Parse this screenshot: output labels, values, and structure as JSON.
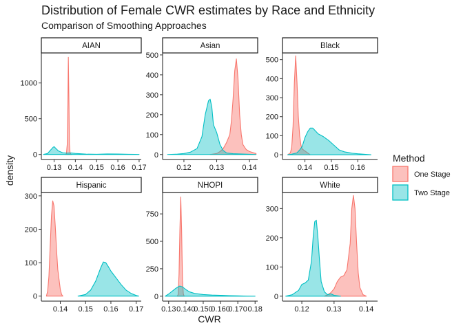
{
  "chart_data": {
    "type": "area",
    "title": "Distribution of Female CWR estimates by Race and Ethnicity",
    "subtitle": "Comparison of Smoothing Approaches",
    "xlabel": "CWR",
    "ylabel": "density",
    "legend": {
      "title": "Method",
      "placement": "right",
      "entries": [
        {
          "name": "One Stage",
          "fill": "#F8766D",
          "fill_opacity": 0.45,
          "stroke": "#F8766D"
        },
        {
          "name": "Two Stage",
          "fill": "#00BFC4",
          "fill_opacity": 0.4,
          "stroke": "#00BFC4"
        }
      ]
    },
    "panels": [
      {
        "name": "AIAN",
        "xlim": [
          0.124,
          0.171
        ],
        "ylim": [
          -70,
          1420
        ],
        "xticks": [
          0.13,
          0.14,
          0.15,
          0.16,
          0.17
        ],
        "xtick_labels": [
          "0.13",
          "0.14",
          "0.15",
          "0.16",
          "0.17"
        ],
        "yticks": [
          0,
          500,
          1000
        ],
        "ytick_labels": [
          "0",
          "500",
          "1000"
        ],
        "series": [
          {
            "name": "One Stage",
            "x": [
              0.1355,
              0.1358,
              0.1362,
              0.1365,
              0.1367,
              0.137,
              0.1372,
              0.1375,
              0.1378,
              0.1382
            ],
            "y": [
              0,
              10,
              150,
              700,
              1360,
              700,
              150,
              30,
              5,
              0
            ]
          },
          {
            "name": "Two Stage",
            "x": [
              0.125,
              0.127,
              0.128,
              0.1295,
              0.13,
              0.1305,
              0.132,
              0.134,
              0.136,
              0.138,
              0.14,
              0.145,
              0.15,
              0.155,
              0.16,
              0.165,
              0.168,
              0.17
            ],
            "y": [
              0,
              15,
              50,
              100,
              110,
              95,
              50,
              25,
              20,
              22,
              15,
              5,
              3,
              8,
              6,
              3,
              1,
              0
            ]
          }
        ]
      },
      {
        "name": "Asian",
        "xlim": [
          0.1135,
          0.1425
        ],
        "ylim": [
          -25,
          510
        ],
        "xticks": [
          0.12,
          0.13,
          0.14
        ],
        "xtick_labels": [
          "0.12",
          "0.13",
          "0.14"
        ],
        "yticks": [
          0,
          100,
          200,
          300,
          400,
          500
        ],
        "ytick_labels": [
          "0",
          "100",
          "200",
          "300",
          "400",
          "500"
        ],
        "series": [
          {
            "name": "One Stage",
            "x": [
              0.128,
              0.13,
              0.131,
              0.132,
              0.133,
              0.134,
              0.1345,
              0.135,
              0.1355,
              0.136,
              0.1365,
              0.137,
              0.1375,
              0.138,
              0.139,
              0.14,
              0.141,
              0.142
            ],
            "y": [
              0,
              5,
              15,
              30,
              60,
              100,
              170,
              280,
              420,
              480,
              380,
              200,
              100,
              50,
              25,
              15,
              10,
              5
            ]
          },
          {
            "name": "Two Stage",
            "x": [
              0.115,
              0.118,
              0.12,
              0.122,
              0.124,
              0.1255,
              0.1265,
              0.1275,
              0.128,
              0.1285,
              0.129,
              0.13,
              0.1305,
              0.131,
              0.132,
              0.133,
              0.135,
              0.14,
              0.142
            ],
            "y": [
              0,
              2,
              5,
              12,
              30,
              90,
              200,
              270,
              278,
              240,
              150,
              110,
              80,
              50,
              20,
              8,
              4,
              1,
              0
            ]
          }
        ]
      },
      {
        "name": "Black",
        "xlim": [
          0.1315,
          0.1675
        ],
        "ylim": [
          -25,
          535
        ],
        "xticks": [
          0.14,
          0.15,
          0.16
        ],
        "xtick_labels": [
          "0.14",
          "0.15",
          "0.16"
        ],
        "yticks": [
          0,
          100,
          200,
          300,
          400,
          500
        ],
        "ytick_labels": [
          "0",
          "100",
          "200",
          "300",
          "400",
          "500"
        ],
        "series": [
          {
            "name": "One Stage",
            "x": [
              0.1335,
              0.1345,
              0.135,
              0.1355,
              0.136,
              0.1365,
              0.137,
              0.1375,
              0.138,
              0.1385,
              0.139,
              0.14,
              0.141,
              0.142
            ],
            "y": [
              0,
              10,
              40,
              150,
              380,
              520,
              380,
              200,
              100,
              50,
              30,
              20,
              10,
              0
            ]
          },
          {
            "name": "Two Stage",
            "x": [
              0.1335,
              0.135,
              0.137,
              0.138,
              0.139,
              0.14,
              0.141,
              0.142,
              0.143,
              0.144,
              0.145,
              0.147,
              0.149,
              0.151,
              0.153,
              0.155,
              0.158,
              0.16,
              0.163,
              0.165
            ],
            "y": [
              0,
              3,
              10,
              25,
              45,
              90,
              120,
              140,
              140,
              125,
              110,
              95,
              75,
              50,
              25,
              15,
              8,
              5,
              2,
              0
            ]
          }
        ]
      },
      {
        "name": "Hispanic",
        "xlim": [
          0.1325,
          0.172
        ],
        "ylim": [
          -15,
          310
        ],
        "xticks": [
          0.14,
          0.15,
          0.16,
          0.17
        ],
        "xtick_labels": [
          "0.14",
          "0.15",
          "0.16",
          "0.17"
        ],
        "yticks": [
          0,
          100,
          200,
          300
        ],
        "ytick_labels": [
          "0",
          "100",
          "200",
          "300"
        ],
        "series": [
          {
            "name": "One Stage",
            "x": [
              0.1345,
              0.135,
              0.1355,
              0.136,
              0.1365,
              0.137,
              0.1375,
              0.138,
              0.1385,
              0.139,
              0.14,
              0.1405,
              0.141
            ],
            "y": [
              0,
              15,
              60,
              150,
              240,
              285,
              270,
              210,
              140,
              80,
              20,
              5,
              0
            ]
          },
          {
            "name": "Two Stage",
            "x": [
              0.147,
              0.15,
              0.152,
              0.154,
              0.155,
              0.156,
              0.157,
              0.158,
              0.159,
              0.16,
              0.161,
              0.162,
              0.164,
              0.166,
              0.168,
              0.17,
              0.171
            ],
            "y": [
              0,
              5,
              18,
              45,
              65,
              85,
              102,
              100,
              88,
              75,
              65,
              55,
              35,
              18,
              8,
              2,
              0
            ]
          }
        ]
      },
      {
        "name": "NHOPI",
        "xlim": [
          0.1265,
          0.1815
        ],
        "ylim": [
          -45,
          945
        ],
        "xticks": [
          0.13,
          0.14,
          0.15,
          0.16,
          0.17,
          0.18
        ],
        "xtick_labels": [
          "0.13",
          "0.140",
          "0.150",
          "0.160",
          "0.170",
          "0.18"
        ],
        "yticks": [
          0,
          250,
          500,
          750
        ],
        "ytick_labels": [
          "0",
          "250",
          "500",
          "750"
        ],
        "series": [
          {
            "name": "One Stage",
            "x": [
              0.135,
              0.1355,
              0.136,
              0.1365,
              0.137,
              0.1375,
              0.138,
              0.1385,
              0.139
            ],
            "y": [
              0,
              15,
              200,
              600,
              905,
              600,
              150,
              20,
              0
            ]
          },
          {
            "name": "Two Stage",
            "x": [
              0.128,
              0.13,
              0.132,
              0.134,
              0.136,
              0.1365,
              0.138,
              0.14,
              0.142,
              0.145,
              0.15,
              0.155,
              0.16,
              0.165,
              0.17,
              0.175,
              0.18
            ],
            "y": [
              0,
              20,
              45,
              70,
              90,
              92,
              85,
              60,
              40,
              25,
              15,
              10,
              8,
              5,
              3,
              1,
              0
            ]
          }
        ]
      },
      {
        "name": "White",
        "xlim": [
          0.114,
          0.1435
        ],
        "ylim": [
          -17,
          355
        ],
        "xticks": [
          0.12,
          0.13,
          0.14
        ],
        "xtick_labels": [
          "0.12",
          "0.13",
          "0.14"
        ],
        "yticks": [
          0,
          100,
          200,
          300
        ],
        "ytick_labels": [
          "0",
          "100",
          "200",
          "300"
        ],
        "series": [
          {
            "name": "One Stage",
            "x": [
              0.127,
              0.128,
              0.129,
              0.13,
              0.131,
              0.132,
              0.133,
              0.134,
              0.135,
              0.1355,
              0.136,
              0.1365,
              0.137,
              0.1375,
              0.138,
              0.139,
              0.14
            ],
            "y": [
              0,
              5,
              12,
              25,
              50,
              65,
              70,
              90,
              180,
              300,
              345,
              300,
              180,
              80,
              30,
              5,
              0
            ]
          },
          {
            "name": "Two Stage",
            "x": [
              0.115,
              0.117,
              0.119,
              0.12,
              0.121,
              0.122,
              0.123,
              0.1235,
              0.124,
              0.1245,
              0.125,
              0.1255,
              0.126,
              0.127,
              0.128,
              0.129,
              0.13,
              0.132
            ],
            "y": [
              0,
              5,
              20,
              40,
              45,
              55,
              120,
              200,
              255,
              260,
              200,
              120,
              50,
              15,
              5,
              8,
              3,
              0
            ]
          }
        ]
      }
    ]
  }
}
